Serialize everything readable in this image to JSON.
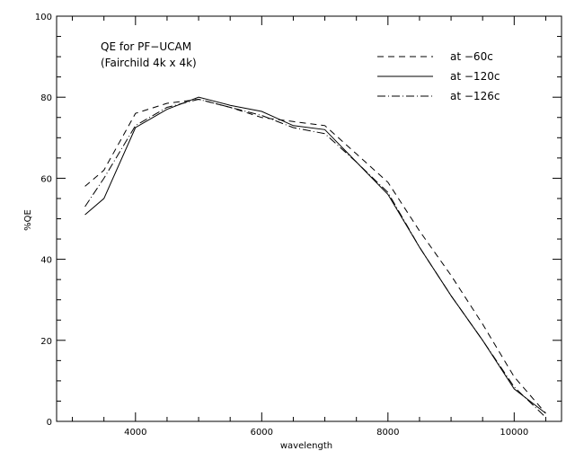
{
  "chart_data": {
    "type": "line",
    "xlabel": "wavelength",
    "ylabel": "%QE",
    "xlim": [
      2750,
      10750
    ],
    "ylim": [
      0,
      100
    ],
    "x_ticks": [
      4000,
      6000,
      8000,
      10000
    ],
    "x_minor_step": 500,
    "y_ticks": [
      0,
      20,
      40,
      60,
      80,
      100
    ],
    "y_minor_step": 5,
    "grid": false,
    "annotation_lines": [
      "QE for PF−UCAM",
      "(Fairchild 4k x 4k)"
    ],
    "legend_position": "top-right",
    "series": [
      {
        "name": "at −60c",
        "dash": "dashed",
        "x": [
          3200,
          3500,
          4000,
          4500,
          5000,
          5500,
          6000,
          6500,
          7000,
          7500,
          8000,
          8500,
          9000,
          9500,
          10000,
          10500
        ],
        "y": [
          58,
          62,
          76,
          78.5,
          79.5,
          77.5,
          75,
          74,
          73,
          66,
          59,
          47,
          36,
          24,
          11,
          2
        ]
      },
      {
        "name": "at −120c",
        "dash": "solid",
        "x": [
          3200,
          3500,
          4000,
          4500,
          5000,
          5500,
          6000,
          6500,
          7000,
          7500,
          8000,
          8500,
          9000,
          9500,
          10000,
          10500
        ],
        "y": [
          51,
          55,
          72.5,
          77,
          80,
          78,
          76.5,
          73,
          72,
          64,
          56,
          43,
          31,
          20,
          8,
          2
        ]
      },
      {
        "name": "at −126c",
        "dash": "dashdot",
        "x": [
          3200,
          3500,
          4000,
          4500,
          5000,
          5500,
          6000,
          6500,
          7000,
          7500,
          8000,
          8500,
          9000,
          9500,
          10000,
          10500
        ],
        "y": [
          53,
          60,
          73,
          77.5,
          79.5,
          77.5,
          75.5,
          72.5,
          71,
          64,
          56.5,
          43,
          31,
          20,
          8.5,
          1
        ]
      }
    ]
  }
}
